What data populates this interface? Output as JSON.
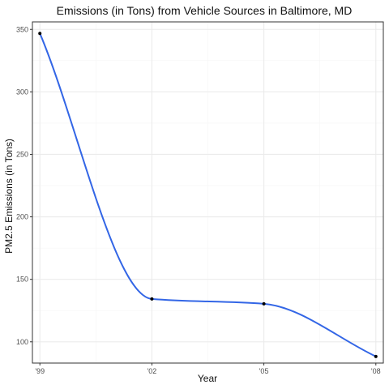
{
  "chart_data": {
    "type": "line",
    "title": "Emissions (in Tons) from Vehicle Sources in Baltimore, MD",
    "xlabel": "Year",
    "ylabel": "PM2.5 Emissions (in Tons)",
    "categories": [
      "'99",
      "'02",
      "'05",
      "'08"
    ],
    "x": [
      1999,
      2002,
      2005,
      2008
    ],
    "series": [
      {
        "values": [
          346.8,
          134.3,
          130.4,
          88.3
        ]
      }
    ],
    "xlim": [
      1998.8,
      2008.2
    ],
    "ylim": [
      83,
      356
    ],
    "yticks": [
      100,
      150,
      200,
      250,
      300,
      350
    ],
    "grid": true,
    "smooth": true,
    "colors": {
      "line": "#3366e6",
      "points": "#000000",
      "grid_major": "#ebebeb",
      "grid_minor": "#f5f5f5",
      "border": "#333333"
    }
  }
}
